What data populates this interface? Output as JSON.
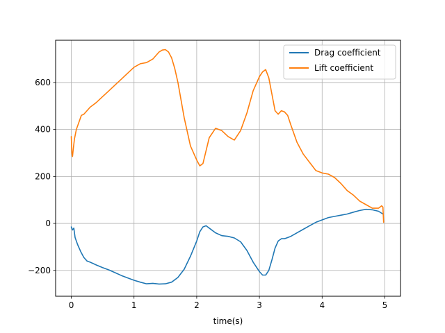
{
  "chart_data": {
    "type": "line",
    "title": "",
    "xlabel": "time(s)",
    "ylabel": "",
    "xlim": [
      -0.25,
      5.25
    ],
    "ylim": [
      -310,
      780
    ],
    "xticks": [
      0,
      1,
      2,
      3,
      4,
      5
    ],
    "xtick_labels": [
      "0",
      "1",
      "2",
      "3",
      "4",
      "5"
    ],
    "yticks": [
      -200,
      0,
      200,
      400,
      600
    ],
    "ytick_labels": [
      "−200",
      "0",
      "200",
      "400",
      "600"
    ],
    "grid": true,
    "legend_position": "top-right",
    "series": [
      {
        "name": "Drag coefficient",
        "color": "#1f77b4",
        "x": [
          0.0,
          0.02,
          0.04,
          0.06,
          0.1,
          0.15,
          0.2,
          0.25,
          0.3,
          0.4,
          0.5,
          0.6,
          0.7,
          0.8,
          0.9,
          1.0,
          1.1,
          1.2,
          1.3,
          1.4,
          1.5,
          1.6,
          1.7,
          1.8,
          1.9,
          2.0,
          2.05,
          2.1,
          2.15,
          2.2,
          2.3,
          2.4,
          2.5,
          2.6,
          2.7,
          2.8,
          2.9,
          3.0,
          3.05,
          3.1,
          3.15,
          3.2,
          3.25,
          3.3,
          3.35,
          3.4,
          3.5,
          3.6,
          3.7,
          3.8,
          3.9,
          4.0,
          4.1,
          4.2,
          4.3,
          4.4,
          4.5,
          4.6,
          4.7,
          4.8,
          4.9,
          4.97
        ],
        "values": [
          -15,
          -28,
          -20,
          -60,
          -90,
          -120,
          -145,
          -160,
          -165,
          -177,
          -188,
          -198,
          -210,
          -222,
          -232,
          -242,
          -250,
          -257,
          -255,
          -258,
          -257,
          -250,
          -230,
          -195,
          -140,
          -75,
          -35,
          -15,
          -10,
          -20,
          -40,
          -52,
          -55,
          -62,
          -78,
          -115,
          -165,
          -205,
          -220,
          -220,
          -200,
          -155,
          -105,
          -75,
          -65,
          -65,
          -55,
          -40,
          -25,
          -10,
          5,
          15,
          25,
          30,
          35,
          40,
          48,
          55,
          60,
          58,
          52,
          40
        ]
      },
      {
        "name": "Lift coefficient",
        "color": "#ff7f0e",
        "x": [
          0.0,
          0.01,
          0.02,
          0.03,
          0.05,
          0.08,
          0.12,
          0.16,
          0.2,
          0.25,
          0.3,
          0.35,
          0.4,
          0.5,
          0.6,
          0.7,
          0.8,
          0.9,
          1.0,
          1.1,
          1.2,
          1.3,
          1.4,
          1.45,
          1.5,
          1.55,
          1.6,
          1.65,
          1.7,
          1.8,
          1.9,
          2.0,
          2.05,
          2.1,
          2.15,
          2.2,
          2.3,
          2.4,
          2.5,
          2.6,
          2.7,
          2.8,
          2.9,
          3.0,
          3.05,
          3.1,
          3.15,
          3.2,
          3.25,
          3.3,
          3.35,
          3.4,
          3.45,
          3.5,
          3.6,
          3.7,
          3.8,
          3.9,
          4.0,
          4.1,
          4.2,
          4.3,
          4.4,
          4.5,
          4.6,
          4.7,
          4.8,
          4.9,
          4.95,
          4.97,
          4.98
        ],
        "values": [
          370,
          300,
          285,
          315,
          360,
          400,
          430,
          460,
          465,
          480,
          495,
          505,
          515,
          540,
          565,
          590,
          615,
          640,
          665,
          680,
          685,
          700,
          730,
          738,
          740,
          730,
          705,
          660,
          600,
          450,
          330,
          270,
          245,
          255,
          310,
          365,
          405,
          395,
          370,
          355,
          395,
          470,
          565,
          625,
          645,
          655,
          620,
          550,
          480,
          465,
          480,
          475,
          460,
          420,
          345,
          295,
          260,
          225,
          215,
          210,
          195,
          170,
          140,
          120,
          95,
          80,
          65,
          65,
          75,
          70,
          5
        ]
      }
    ]
  }
}
